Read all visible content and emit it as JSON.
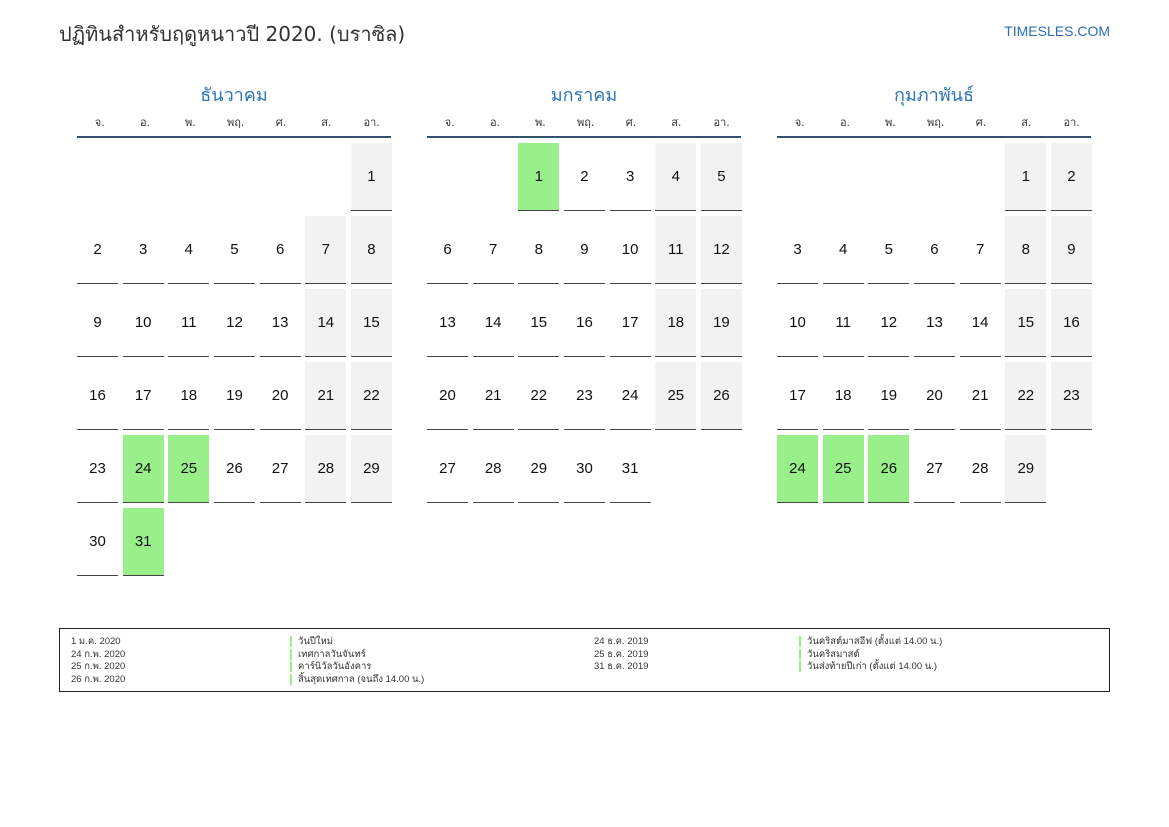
{
  "header": {
    "title": "ปฏิทินสำหรับฤดูหนาวปี 2020. (บราซิล)",
    "site": "TIMESLES.COM"
  },
  "weekday_labels": [
    "จ.",
    "อ.",
    "พ.",
    "พฤ.",
    "ศ.",
    "ส.",
    "อา."
  ],
  "months": [
    {
      "name": "ธันวาคม",
      "weeks": [
        [
          "",
          "",
          "",
          "",
          "",
          "",
          "1"
        ],
        [
          "2",
          "3",
          "4",
          "5",
          "6",
          "7",
          "8"
        ],
        [
          "9",
          "10",
          "11",
          "12",
          "13",
          "14",
          "15"
        ],
        [
          "16",
          "17",
          "18",
          "19",
          "20",
          "21",
          "22"
        ],
        [
          "23",
          "24",
          "25",
          "26",
          "27",
          "28",
          "29"
        ],
        [
          "30",
          "31",
          "",
          "",
          "",
          "",
          ""
        ]
      ],
      "holidays": [
        "24",
        "25",
        "31"
      ]
    },
    {
      "name": "มกราคม",
      "weeks": [
        [
          "",
          "",
          "1",
          "2",
          "3",
          "4",
          "5"
        ],
        [
          "6",
          "7",
          "8",
          "9",
          "10",
          "11",
          "12"
        ],
        [
          "13",
          "14",
          "15",
          "16",
          "17",
          "18",
          "19"
        ],
        [
          "20",
          "21",
          "22",
          "23",
          "24",
          "25",
          "26"
        ],
        [
          "27",
          "28",
          "29",
          "30",
          "31",
          "",
          ""
        ]
      ],
      "holidays": [
        "1"
      ]
    },
    {
      "name": "กุมภาพันธ์",
      "weeks": [
        [
          "",
          "",
          "",
          "",
          "",
          "1",
          "2"
        ],
        [
          "3",
          "4",
          "5",
          "6",
          "7",
          "8",
          "9"
        ],
        [
          "10",
          "11",
          "12",
          "13",
          "14",
          "15",
          "16"
        ],
        [
          "17",
          "18",
          "19",
          "20",
          "21",
          "22",
          "23"
        ],
        [
          "24",
          "25",
          "26",
          "27",
          "28",
          "29",
          ""
        ]
      ],
      "holidays": [
        "24",
        "25",
        "26"
      ]
    }
  ],
  "legend": {
    "left": [
      {
        "date": "1 ม.ค. 2020",
        "name": "วันปีใหม่"
      },
      {
        "date": "24 ก.พ. 2020",
        "name": "เทศกาลวันจันทร์"
      },
      {
        "date": "25 ก.พ. 2020",
        "name": "คาร์นิวัลวันอังคาร"
      },
      {
        "date": "26 ก.พ. 2020",
        "name": "สิ้นสุดเทศกาล (จนถึง 14.00 น.)"
      }
    ],
    "right": [
      {
        "date": "24 ธ.ค. 2019",
        "name": "วันคริสต์มาสอีฟ (ตั้งแต่ 14.00 น.)"
      },
      {
        "date": "25 ธ.ค. 2019",
        "name": "วันคริสมาสต์"
      },
      {
        "date": "31 ธ.ค. 2019",
        "name": "วันส่งท้ายปีเก่า (ตั้งแต่ 14.00 น.)"
      }
    ]
  },
  "colors": {
    "holiday": "#99f08a",
    "weekend": "#f2f2f2",
    "month_title": "#2a75b8",
    "header_rule": "#34506f"
  }
}
